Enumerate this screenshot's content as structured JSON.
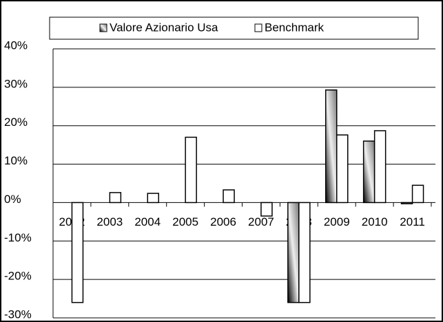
{
  "chart_data": {
    "type": "bar",
    "categories": [
      "2002",
      "2003",
      "2004",
      "2005",
      "2006",
      "2007",
      "2008",
      "2009",
      "2010",
      "2011"
    ],
    "series": [
      {
        "name": "Valore Azionario Usa",
        "color": "#333333",
        "values": [
          null,
          null,
          null,
          null,
          null,
          null,
          -26,
          29.3,
          16,
          -0.3
        ]
      },
      {
        "name": "Benchmark",
        "color": "#ffffff",
        "values": [
          -26,
          2.6,
          2.4,
          17,
          3.3,
          -3.5,
          -26,
          17.6,
          18.7,
          4.5
        ]
      }
    ],
    "ylim": [
      -30,
      40
    ],
    "yticks": [
      {
        "value": -30,
        "label": "-30%"
      },
      {
        "value": -20,
        "label": "-20%"
      },
      {
        "value": -10,
        "label": "-10%"
      },
      {
        "value": 0,
        "label": "0%"
      },
      {
        "value": 10,
        "label": "10%"
      },
      {
        "value": 20,
        "label": "20%"
      },
      {
        "value": 30,
        "label": "30%"
      },
      {
        "value": 40,
        "label": "40%"
      }
    ],
    "grid": true,
    "legend": "top"
  }
}
